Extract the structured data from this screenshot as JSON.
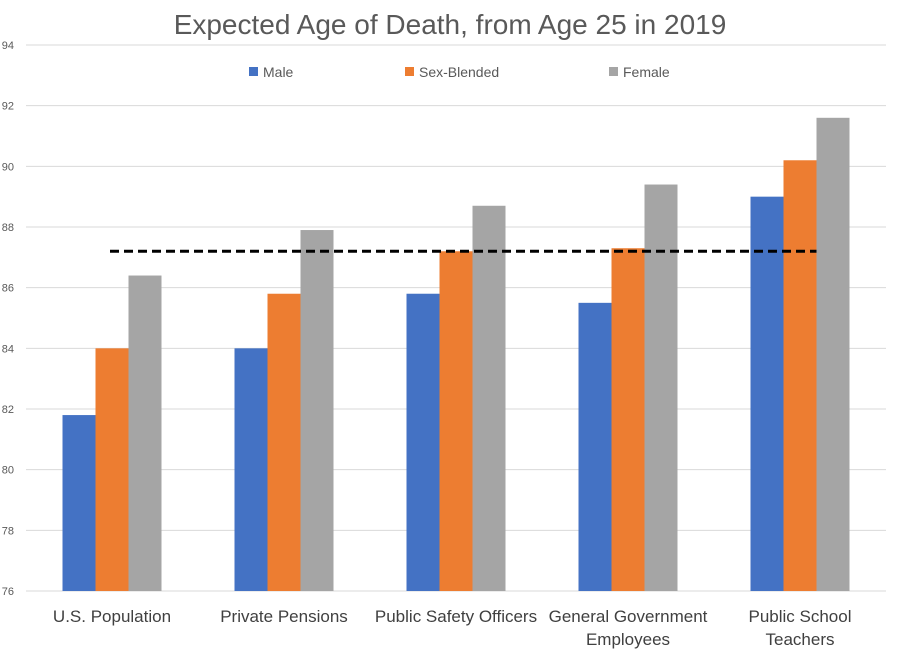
{
  "chart_data": {
    "type": "bar",
    "title": "Expected Age of Death, from Age 25 in 2019",
    "categories": [
      [
        "U.S. Population"
      ],
      [
        "Private Pensions"
      ],
      [
        "Public Safety Officers"
      ],
      [
        "General Government",
        "Employees"
      ],
      [
        "Public School",
        "Teachers"
      ]
    ],
    "series": [
      {
        "name": "Male",
        "color": "#4472C4",
        "values": [
          81.8,
          84.0,
          85.8,
          85.5,
          89.0
        ]
      },
      {
        "name": "Sex-Blended",
        "color": "#ED7D31",
        "values": [
          84.0,
          85.8,
          87.2,
          87.3,
          90.2
        ]
      },
      {
        "name": "Female",
        "color": "#A5A5A5",
        "values": [
          86.4,
          87.9,
          88.7,
          89.4,
          91.6
        ]
      }
    ],
    "ylim": [
      76,
      94
    ],
    "yticks": [
      76,
      78,
      80,
      82,
      84,
      86,
      88,
      90,
      92,
      94
    ],
    "grid": true,
    "legend": "top-center",
    "reference_line": {
      "value": 87.2,
      "style": "dashed",
      "color": "#000000"
    }
  }
}
